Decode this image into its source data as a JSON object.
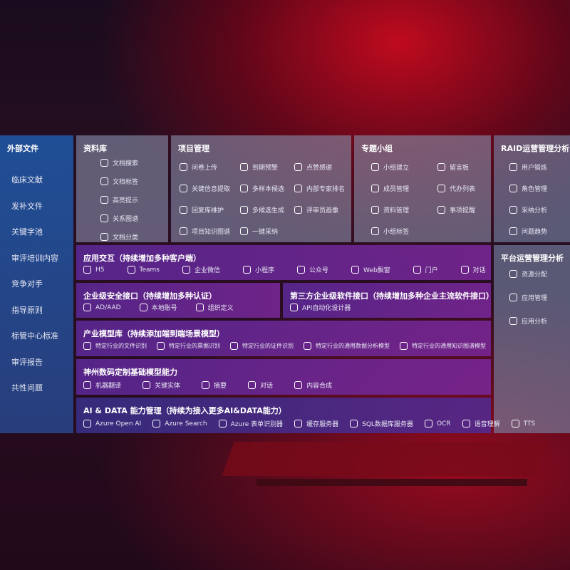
{
  "left_panel": {
    "title": "外部文件",
    "items": [
      "临床文献",
      "发补文件",
      "关键字池",
      "审评培训内容",
      "竞争对手",
      "指导原则",
      "标管中心标准",
      "审评报告",
      "共性问题"
    ]
  },
  "modules": {
    "library": {
      "title": "资料库",
      "items": [
        "文档搜索",
        "文档标签",
        "高亮提示",
        "关系图谱",
        "文档分类"
      ]
    },
    "project": {
      "title": "项目管理",
      "items": [
        "问卷上传",
        "到期预警",
        "点赞感谢",
        "关键信息提取",
        "多样本候选",
        "内部专家排名",
        "回复库维护",
        "多候选生成",
        "评审员画像",
        "项目知识图谱",
        "一键采纳"
      ]
    },
    "group": {
      "title": "专题小组",
      "items": [
        "小组建立",
        "留言板",
        "成员管理",
        "代办列表",
        "资料管理",
        "事项提醒",
        "小组标签"
      ]
    },
    "raid": {
      "title": "RAID运营管理分析",
      "items": [
        "用户锻炼",
        "角色管理",
        "采纳分析",
        "问题趋势"
      ]
    },
    "platform": {
      "title": "平台运营管理分析",
      "items": [
        "资源分配",
        "应用管理",
        "应用分析"
      ]
    },
    "interaction": {
      "title": "应用交互（持续增加多种客户端）",
      "items": [
        "H5",
        "Teams",
        "企业微信",
        "小程序",
        "公众号",
        "Web飘窗",
        "门户",
        "对话"
      ]
    },
    "security": {
      "title": "企业级安全接口（持续增加多种认证）",
      "items": [
        "AD/AAD",
        "本地账号",
        "组织定义"
      ]
    },
    "third_party": {
      "title": "第三方企业级软件接口（持续增加多种企业主流软件接口）",
      "items": [
        "API自动化设计器"
      ]
    },
    "industry": {
      "title": "产业模型库（持续添加端到端场景模型）",
      "items": [
        "特定行业的文件识别",
        "特定行业的票据识别",
        "特定行业的证件识别",
        "特定行业的通用数据分析模型",
        "特定行业的通用知识图谱模型"
      ]
    },
    "custom": {
      "title": "神州数码定制基础模型能力",
      "items": [
        "机器翻译",
        "关键实体",
        "摘要",
        "对话",
        "内容合成"
      ]
    },
    "ai_data": {
      "title": "AI & DATA 能力管理（持续为接入更多AI&DATA能力）",
      "items": [
        "Azure Open AI",
        "Azure Search",
        "Azure 表单识别器",
        "缓存服务器",
        "SQL数据库服务器",
        "OCR",
        "语音理解",
        "TTS"
      ]
    }
  }
}
